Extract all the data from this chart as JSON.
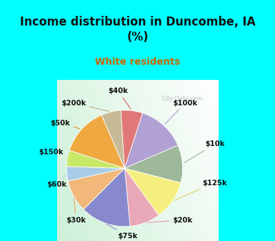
{
  "title": "Income distribution in Duncombe, IA\n(%)",
  "subtitle": "White residents",
  "title_color": "#111111",
  "subtitle_color": "#cc6600",
  "background_cyan": "#00ffff",
  "labels": [
    "$100k",
    "$10k",
    "$125k",
    "$20k",
    "$75k",
    "$30k",
    "$60k",
    "$150k",
    "$50k",
    "$200k",
    "$40k"
  ],
  "values": [
    13.5,
    10.5,
    11.0,
    8.5,
    14.0,
    9.0,
    4.0,
    4.5,
    13.5,
    5.5,
    6.0
  ],
  "colors": [
    "#b0a0d4",
    "#9eb89a",
    "#f5ef80",
    "#e8a8b8",
    "#8888cc",
    "#f2b87a",
    "#a8cce8",
    "#c8e868",
    "#f0a840",
    "#c8ba96",
    "#e07878"
  ],
  "label_color": "#111111",
  "watermark": "City-Data.com",
  "title_fontsize": 12,
  "subtitle_fontsize": 10
}
